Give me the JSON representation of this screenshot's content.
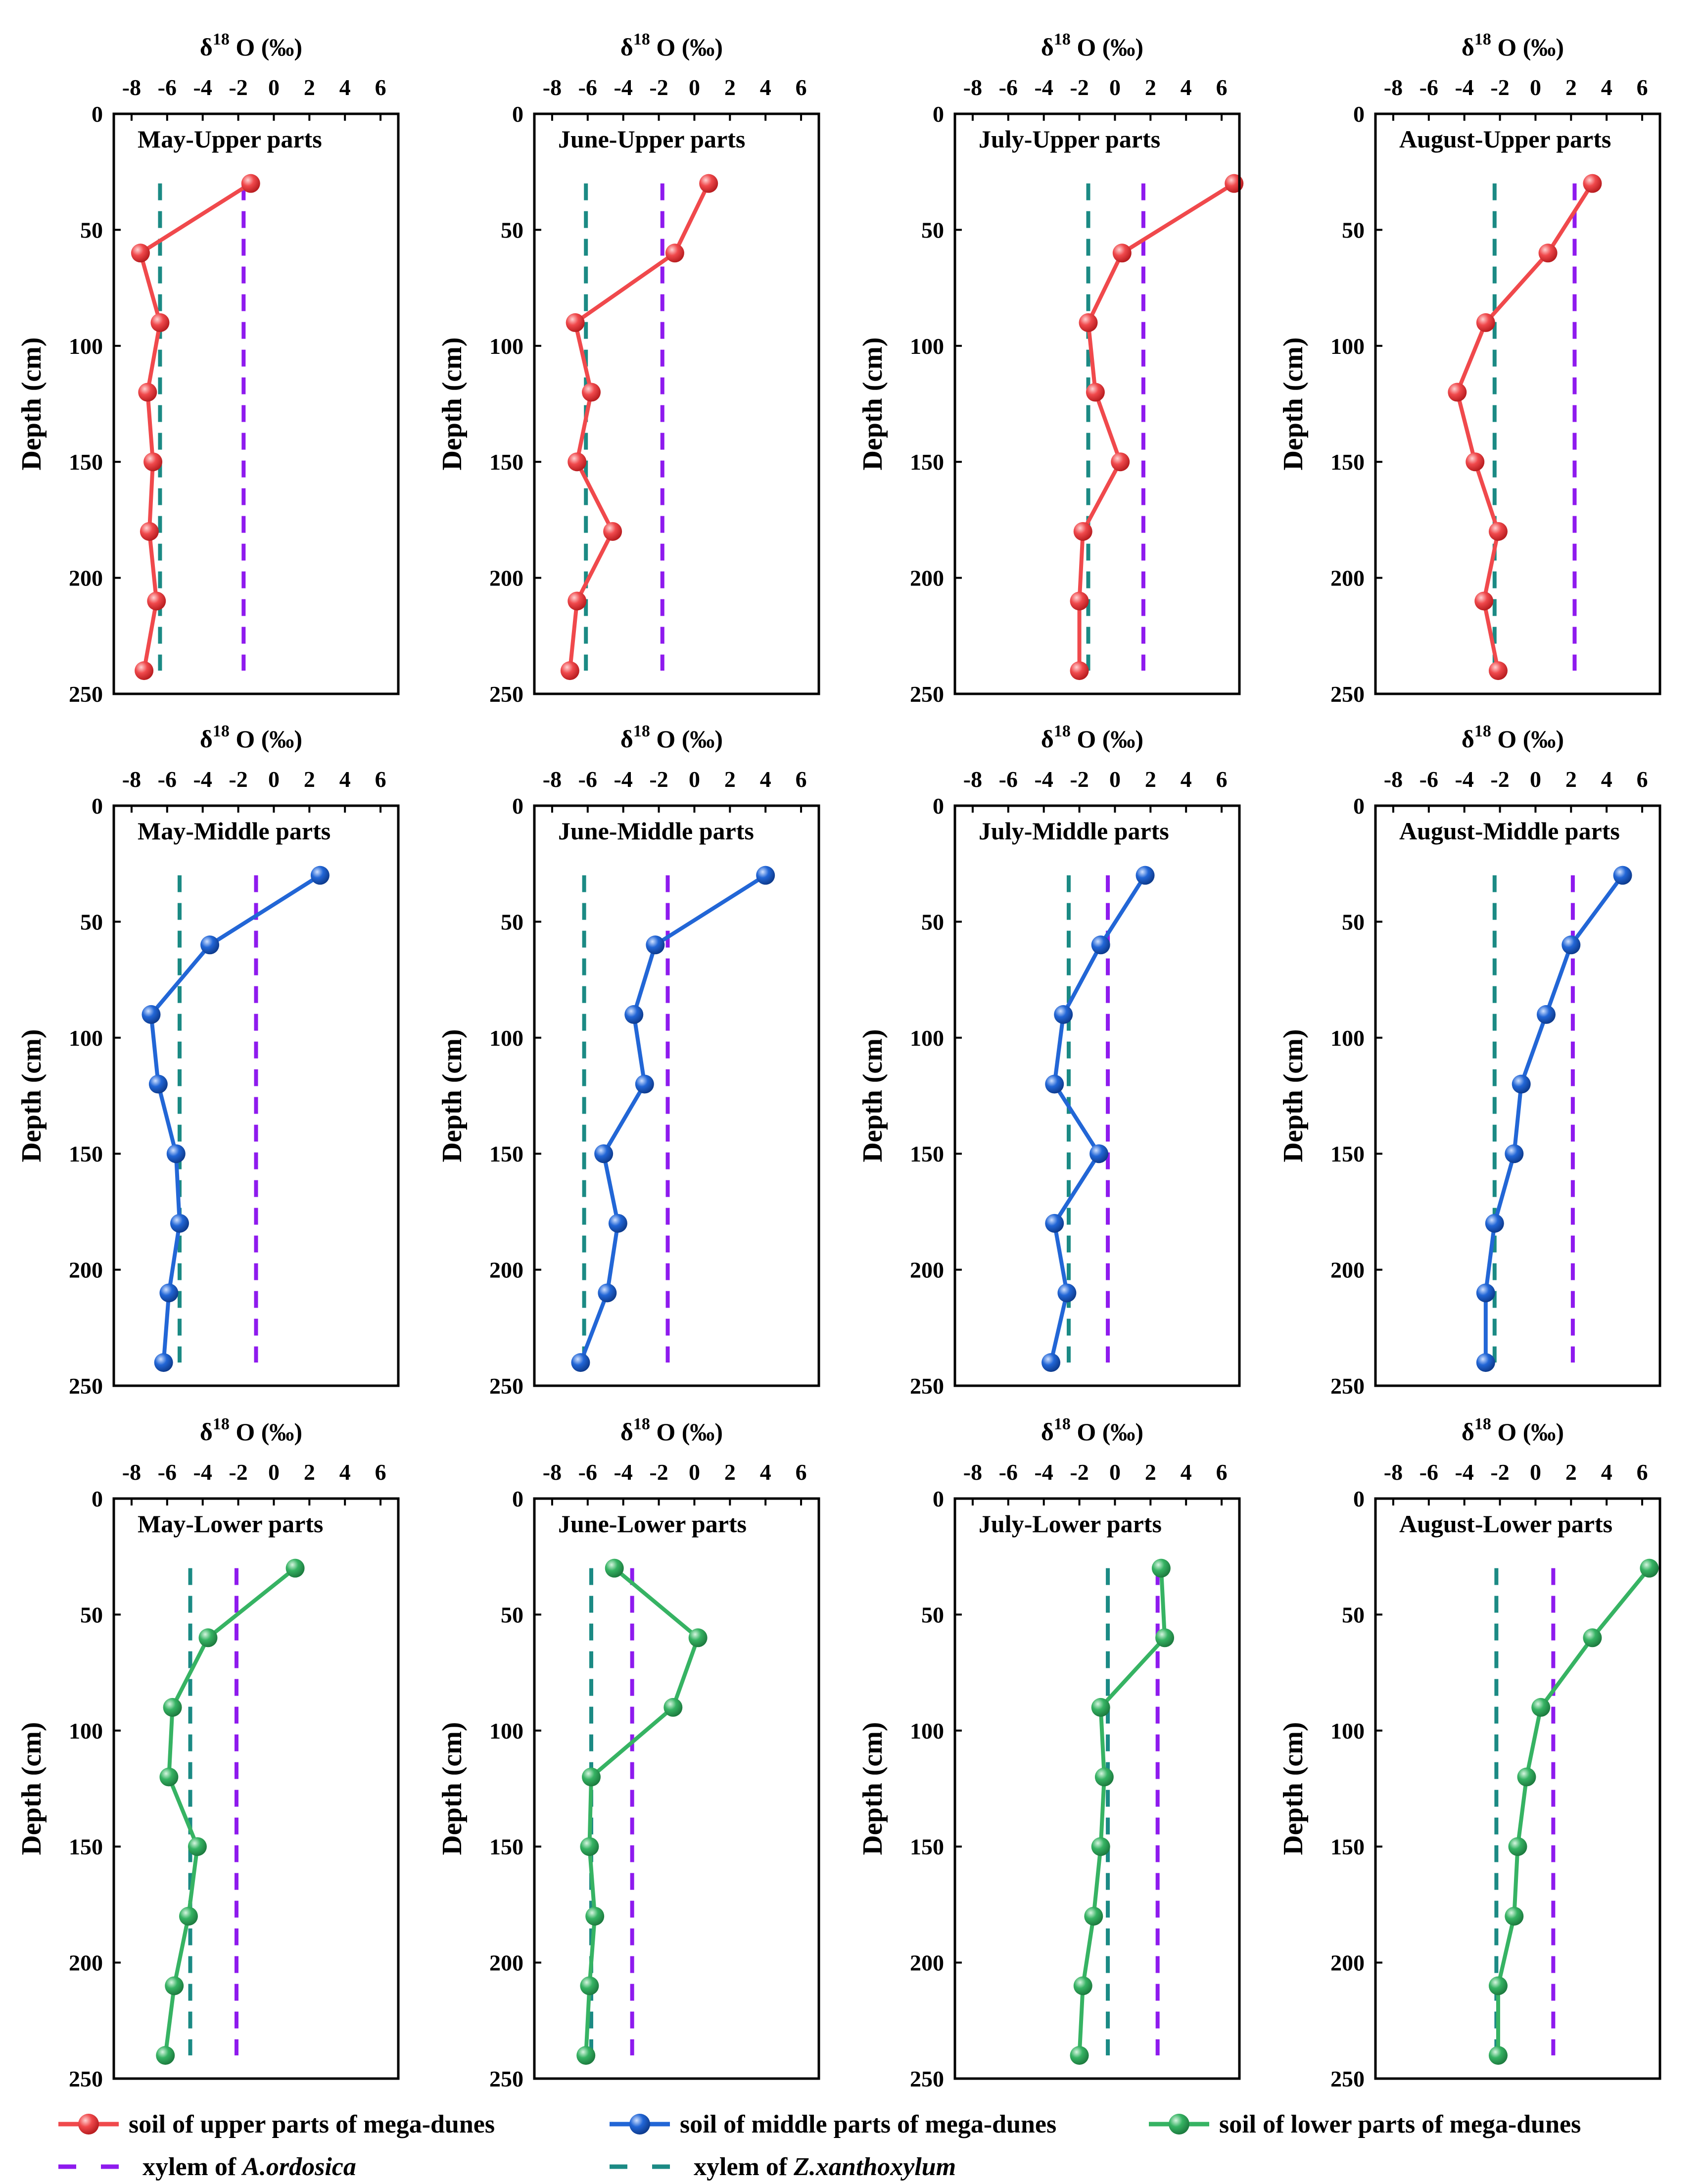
{
  "colors": {
    "upper": "#f0494c",
    "middle": "#2266d6",
    "lower": "#36b363",
    "a_ordosica": "#8e1aee",
    "z_xanthoxylum": "#1b8a84",
    "axis": "#000000"
  },
  "axis_text": {
    "x_label_main": "δ",
    "x_label_sup": "18",
    "x_label_tail": "O (‰)",
    "y_label": "Depth (cm)"
  },
  "legend": {
    "upper_soil": "soil of upper parts of mega-dunes",
    "middle_soil": "soil of middle parts of mega-dunes",
    "lower_soil": "soil of lower parts of mega-dunes",
    "xylem_a_prefix": "xylem of ",
    "xylem_a_species": "A.ordosica",
    "xylem_z_prefix": "xylem of ",
    "xylem_z_species": "Z.xanthoxylum"
  },
  "chart_data": [
    {
      "type": "line",
      "title": "May-Upper parts",
      "xlabel": "δ18O (‰)",
      "ylabel": "Depth (cm)",
      "xlim": [
        -9,
        7
      ],
      "ylim": [
        0,
        250
      ],
      "x_ticks": [
        "-8",
        "-6",
        "-4",
        "-2",
        "0",
        "2",
        "4",
        "6"
      ],
      "y_ticks": [
        "0",
        "50",
        "100",
        "150",
        "200",
        "250"
      ],
      "series": [
        {
          "name": "soil of upper parts of mega-dunes",
          "group": "upper",
          "depth": [
            30,
            60,
            90,
            120,
            150,
            180,
            210,
            240
          ],
          "values": [
            -1.3,
            -7.5,
            -6.4,
            -7.1,
            -6.8,
            -7.0,
            -6.6,
            -7.3
          ]
        }
      ],
      "ref_lines": [
        {
          "name": "xylem of A.ordosica",
          "value": -1.7
        },
        {
          "name": "xylem of Z.xanthoxylum",
          "value": -6.4
        }
      ]
    },
    {
      "type": "line",
      "title": "June-Upper parts",
      "xlabel": "δ18O (‰)",
      "ylabel": "Depth (cm)",
      "xlim": [
        -9,
        7
      ],
      "ylim": [
        0,
        250
      ],
      "x_ticks": [
        "-8",
        "-6",
        "-4",
        "-2",
        "0",
        "2",
        "4",
        "6"
      ],
      "y_ticks": [
        "0",
        "50",
        "100",
        "150",
        "200",
        "250"
      ],
      "series": [
        {
          "name": "soil of upper parts of mega-dunes",
          "group": "upper",
          "depth": [
            30,
            60,
            90,
            120,
            150,
            180,
            210,
            240
          ],
          "values": [
            0.8,
            -1.1,
            -6.7,
            -5.8,
            -6.6,
            -4.6,
            -6.6,
            -7.0
          ]
        }
      ],
      "ref_lines": [
        {
          "name": "xylem of A.ordosica",
          "value": -1.8
        },
        {
          "name": "xylem of Z.xanthoxylum",
          "value": -6.1
        }
      ]
    },
    {
      "type": "line",
      "title": "July-Upper parts",
      "xlabel": "δ18O (‰)",
      "ylabel": "Depth (cm)",
      "xlim": [
        -9,
        7
      ],
      "ylim": [
        0,
        250
      ],
      "x_ticks": [
        "-8",
        "-6",
        "-4",
        "-2",
        "0",
        "2",
        "4",
        "6"
      ],
      "y_ticks": [
        "0",
        "50",
        "100",
        "150",
        "200",
        "250"
      ],
      "series": [
        {
          "name": "soil of upper parts of mega-dunes",
          "group": "upper",
          "depth": [
            30,
            60,
            90,
            120,
            150,
            180,
            210,
            240
          ],
          "values": [
            6.7,
            0.4,
            -1.5,
            -1.1,
            0.3,
            -1.8,
            -2.0,
            -2.0
          ]
        }
      ],
      "ref_lines": [
        {
          "name": "xylem of A.ordosica",
          "value": 1.6
        },
        {
          "name": "xylem of Z.xanthoxylum",
          "value": -1.5
        }
      ]
    },
    {
      "type": "line",
      "title": "August-Upper parts",
      "xlabel": "δ18O (‰)",
      "ylabel": "Depth (cm)",
      "xlim": [
        -9,
        7
      ],
      "ylim": [
        0,
        250
      ],
      "x_ticks": [
        "-8",
        "-6",
        "-4",
        "-2",
        "0",
        "2",
        "4",
        "6"
      ],
      "y_ticks": [
        "0",
        "50",
        "100",
        "150",
        "200",
        "250"
      ],
      "series": [
        {
          "name": "soil of upper parts of mega-dunes",
          "group": "upper",
          "depth": [
            30,
            60,
            90,
            120,
            150,
            180,
            210,
            240
          ],
          "values": [
            3.2,
            0.7,
            -2.8,
            -4.4,
            -3.4,
            -2.1,
            -2.9,
            -2.1
          ]
        }
      ],
      "ref_lines": [
        {
          "name": "xylem of A.ordosica",
          "value": 2.2
        },
        {
          "name": "xylem of Z.xanthoxylum",
          "value": -2.3
        }
      ]
    },
    {
      "type": "line",
      "title": "May-Middle parts",
      "xlabel": "δ18O (‰)",
      "ylabel": "Depth (cm)",
      "xlim": [
        -9,
        7
      ],
      "ylim": [
        0,
        250
      ],
      "x_ticks": [
        "-8",
        "-6",
        "-4",
        "-2",
        "0",
        "2",
        "4",
        "6"
      ],
      "y_ticks": [
        "0",
        "50",
        "100",
        "150",
        "200",
        "250"
      ],
      "series": [
        {
          "name": "soil of middle parts of mega-dunes",
          "group": "middle",
          "depth": [
            30,
            60,
            90,
            120,
            150,
            180,
            210,
            240
          ],
          "values": [
            2.6,
            -3.6,
            -6.9,
            -6.5,
            -5.5,
            -5.3,
            -5.9,
            -6.2
          ]
        }
      ],
      "ref_lines": [
        {
          "name": "xylem of A.ordosica",
          "value": -1.0
        },
        {
          "name": "xylem of Z.xanthoxylum",
          "value": -5.3
        }
      ]
    },
    {
      "type": "line",
      "title": "June-Middle parts",
      "xlabel": "δ18O (‰)",
      "ylabel": "Depth (cm)",
      "xlim": [
        -9,
        7
      ],
      "ylim": [
        0,
        250
      ],
      "x_ticks": [
        "-8",
        "-6",
        "-4",
        "-2",
        "0",
        "2",
        "4",
        "6"
      ],
      "y_ticks": [
        "0",
        "50",
        "100",
        "150",
        "200",
        "250"
      ],
      "series": [
        {
          "name": "soil of middle parts of mega-dunes",
          "group": "middle",
          "depth": [
            30,
            60,
            90,
            120,
            150,
            180,
            210,
            240
          ],
          "values": [
            4.0,
            -2.2,
            -3.4,
            -2.8,
            -5.1,
            -4.3,
            -4.9,
            -6.4
          ]
        }
      ],
      "ref_lines": [
        {
          "name": "xylem of A.ordosica",
          "value": -1.5
        },
        {
          "name": "xylem of Z.xanthoxylum",
          "value": -6.2
        }
      ]
    },
    {
      "type": "line",
      "title": "July-Middle parts",
      "xlabel": "δ18O (‰)",
      "ylabel": "Depth (cm)",
      "xlim": [
        -9,
        7
      ],
      "ylim": [
        0,
        250
      ],
      "x_ticks": [
        "-8",
        "-6",
        "-4",
        "-2",
        "0",
        "2",
        "4",
        "6"
      ],
      "y_ticks": [
        "0",
        "50",
        "100",
        "150",
        "200",
        "250"
      ],
      "series": [
        {
          "name": "soil of middle parts of mega-dunes",
          "group": "middle",
          "depth": [
            30,
            60,
            90,
            120,
            150,
            180,
            210,
            240
          ],
          "values": [
            1.7,
            -0.8,
            -2.9,
            -3.4,
            -0.9,
            -3.4,
            -2.7,
            -3.6
          ]
        }
      ],
      "ref_lines": [
        {
          "name": "xylem of A.ordosica",
          "value": -0.4
        },
        {
          "name": "xylem of Z.xanthoxylum",
          "value": -2.6
        }
      ]
    },
    {
      "type": "line",
      "title": "August-Middle parts",
      "xlabel": "δ18O (‰)",
      "ylabel": "Depth (cm)",
      "xlim": [
        -9,
        7
      ],
      "ylim": [
        0,
        250
      ],
      "x_ticks": [
        "-8",
        "-6",
        "-4",
        "-2",
        "0",
        "2",
        "4",
        "6"
      ],
      "y_ticks": [
        "0",
        "50",
        "100",
        "150",
        "200",
        "250"
      ],
      "series": [
        {
          "name": "soil of middle parts of mega-dunes",
          "group": "middle",
          "depth": [
            30,
            60,
            90,
            120,
            150,
            180,
            210,
            240
          ],
          "values": [
            4.9,
            2.0,
            0.6,
            -0.8,
            -1.2,
            -2.3,
            -2.8,
            -2.8
          ]
        }
      ],
      "ref_lines": [
        {
          "name": "xylem of A.ordosica",
          "value": 2.1
        },
        {
          "name": "xylem of Z.xanthoxylum",
          "value": -2.3
        }
      ]
    },
    {
      "type": "line",
      "title": "May-Lower parts",
      "xlabel": "δ18O (‰)",
      "ylabel": "Depth (cm)",
      "xlim": [
        -9,
        7
      ],
      "ylim": [
        0,
        250
      ],
      "x_ticks": [
        "-8",
        "-6",
        "-4",
        "-2",
        "0",
        "2",
        "4",
        "6"
      ],
      "y_ticks": [
        "0",
        "50",
        "100",
        "150",
        "200",
        "250"
      ],
      "series": [
        {
          "name": "soil of lower parts of mega-dunes",
          "group": "lower",
          "depth": [
            30,
            60,
            90,
            120,
            150,
            180,
            210,
            240
          ],
          "values": [
            1.2,
            -3.7,
            -5.7,
            -5.9,
            -4.3,
            -4.8,
            -5.6,
            -6.1
          ]
        }
      ],
      "ref_lines": [
        {
          "name": "xylem of A.ordosica",
          "value": -2.1
        },
        {
          "name": "xylem of Z.xanthoxylum",
          "value": -4.7
        }
      ]
    },
    {
      "type": "line",
      "title": "June-Lower parts",
      "xlabel": "δ18O (‰)",
      "ylabel": "Depth (cm)",
      "xlim": [
        -9,
        7
      ],
      "ylim": [
        0,
        250
      ],
      "x_ticks": [
        "-8",
        "-6",
        "-4",
        "-2",
        "0",
        "2",
        "4",
        "6"
      ],
      "y_ticks": [
        "0",
        "50",
        "100",
        "150",
        "200",
        "250"
      ],
      "series": [
        {
          "name": "soil of lower parts of mega-dunes",
          "group": "lower",
          "depth": [
            30,
            60,
            90,
            120,
            150,
            180,
            210,
            240
          ],
          "values": [
            -4.5,
            0.2,
            -1.2,
            -5.8,
            -5.9,
            -5.6,
            -5.9,
            -6.1
          ]
        }
      ],
      "ref_lines": [
        {
          "name": "xylem of A.ordosica",
          "value": -3.5
        },
        {
          "name": "xylem of Z.xanthoxylum",
          "value": -5.8
        }
      ]
    },
    {
      "type": "line",
      "title": "July-Lower parts",
      "xlabel": "δ18O (‰)",
      "ylabel": "Depth (cm)",
      "xlim": [
        -9,
        7
      ],
      "ylim": [
        0,
        250
      ],
      "x_ticks": [
        "-8",
        "-6",
        "-4",
        "-2",
        "0",
        "2",
        "4",
        "6"
      ],
      "y_ticks": [
        "0",
        "50",
        "100",
        "150",
        "200",
        "250"
      ],
      "series": [
        {
          "name": "soil of lower parts of mega-dunes",
          "group": "lower",
          "depth": [
            30,
            60,
            90,
            120,
            150,
            180,
            210,
            240
          ],
          "values": [
            2.6,
            2.8,
            -0.8,
            -0.6,
            -0.8,
            -1.2,
            -1.8,
            -2.0
          ]
        }
      ],
      "ref_lines": [
        {
          "name": "xylem of A.ordosica",
          "value": 2.4
        },
        {
          "name": "xylem of Z.xanthoxylum",
          "value": -0.4
        }
      ]
    },
    {
      "type": "line",
      "title": "August-Lower parts",
      "xlabel": "δ18O (‰)",
      "ylabel": "Depth (cm)",
      "xlim": [
        -9,
        7
      ],
      "ylim": [
        0,
        250
      ],
      "x_ticks": [
        "-8",
        "-6",
        "-4",
        "-2",
        "0",
        "2",
        "4",
        "6"
      ],
      "y_ticks": [
        "0",
        "50",
        "100",
        "150",
        "200",
        "250"
      ],
      "series": [
        {
          "name": "soil of lower parts of mega-dunes",
          "group": "lower",
          "depth": [
            30,
            60,
            90,
            120,
            150,
            180,
            210,
            240
          ],
          "values": [
            6.4,
            3.2,
            0.3,
            -0.5,
            -1.0,
            -1.2,
            -2.1,
            -2.1
          ]
        }
      ],
      "ref_lines": [
        {
          "name": "xylem of A.ordosica",
          "value": 1.0
        },
        {
          "name": "xylem of Z.xanthoxylum",
          "value": -2.2
        }
      ]
    }
  ]
}
